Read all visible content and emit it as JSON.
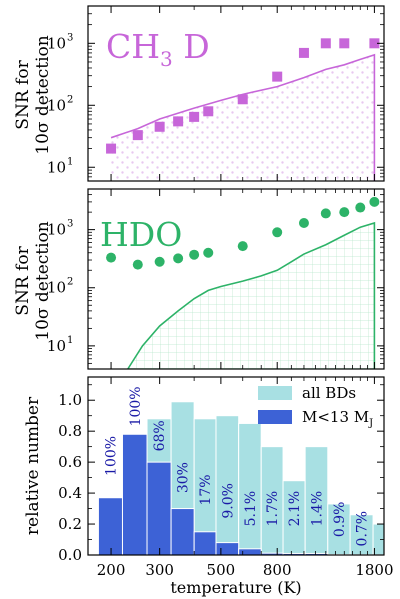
{
  "chart_data": [
    {
      "type": "line+scatter",
      "title": "CH3 D",
      "title_parts": [
        "CH",
        "3",
        " D"
      ],
      "ylabel_lines": [
        "SNR for",
        "10σ detection"
      ],
      "yscale": "log",
      "ylim": [
        6,
        4000
      ],
      "yticks": [
        {
          "v": 10,
          "label": "10"
        },
        {
          "v": 100,
          "label": "10"
        },
        {
          "v": 1000,
          "label": "10"
        }
      ],
      "ytick_exps": [
        "1",
        "2",
        "3"
      ],
      "xscale": "log",
      "xlim": [
        165,
        1950
      ],
      "accent": "#c766d9",
      "marker": "square",
      "points": [
        {
          "x": 200,
          "y": 20
        },
        {
          "x": 250,
          "y": 33
        },
        {
          "x": 300,
          "y": 45
        },
        {
          "x": 350,
          "y": 55
        },
        {
          "x": 400,
          "y": 65
        },
        {
          "x": 450,
          "y": 80
        },
        {
          "x": 600,
          "y": 125
        },
        {
          "x": 800,
          "y": 290
        },
        {
          "x": 1000,
          "y": 700
        },
        {
          "x": 1200,
          "y": 1000
        },
        {
          "x": 1400,
          "y": 1000
        },
        {
          "x": 1800,
          "y": 1000
        }
      ],
      "curve": [
        {
          "x": 200,
          "y": 30
        },
        {
          "x": 250,
          "y": 42
        },
        {
          "x": 300,
          "y": 60
        },
        {
          "x": 400,
          "y": 90
        },
        {
          "x": 500,
          "y": 120
        },
        {
          "x": 600,
          "y": 150
        },
        {
          "x": 800,
          "y": 200
        },
        {
          "x": 1000,
          "y": 280
        },
        {
          "x": 1200,
          "y": 380
        },
        {
          "x": 1400,
          "y": 450
        },
        {
          "x": 1600,
          "y": 550
        },
        {
          "x": 1800,
          "y": 650
        }
      ],
      "fill": "dots"
    },
    {
      "type": "line+scatter",
      "title": "HDO",
      "ylabel_lines": [
        "SNR for",
        "10σ detection"
      ],
      "yscale": "log",
      "ylim": [
        4,
        5000
      ],
      "yticks": [
        {
          "v": 10,
          "label": "10"
        },
        {
          "v": 100,
          "label": "10"
        },
        {
          "v": 1000,
          "label": "10"
        }
      ],
      "ytick_exps": [
        "1",
        "2",
        "3"
      ],
      "xscale": "log",
      "xlim": [
        165,
        1950
      ],
      "accent": "#2db368",
      "marker": "circle",
      "points": [
        {
          "x": 200,
          "y": 330
        },
        {
          "x": 250,
          "y": 250
        },
        {
          "x": 300,
          "y": 280
        },
        {
          "x": 350,
          "y": 320
        },
        {
          "x": 400,
          "y": 370
        },
        {
          "x": 450,
          "y": 400
        },
        {
          "x": 600,
          "y": 520
        },
        {
          "x": 800,
          "y": 900
        },
        {
          "x": 1000,
          "y": 1300
        },
        {
          "x": 1200,
          "y": 1900
        },
        {
          "x": 1400,
          "y": 2000
        },
        {
          "x": 1600,
          "y": 2400
        },
        {
          "x": 1800,
          "y": 3000
        }
      ],
      "curve": [
        {
          "x": 230,
          "y": 4
        },
        {
          "x": 260,
          "y": 10
        },
        {
          "x": 300,
          "y": 22
        },
        {
          "x": 350,
          "y": 40
        },
        {
          "x": 400,
          "y": 65
        },
        {
          "x": 450,
          "y": 90
        },
        {
          "x": 500,
          "y": 105
        },
        {
          "x": 600,
          "y": 130
        },
        {
          "x": 700,
          "y": 160
        },
        {
          "x": 800,
          "y": 200
        },
        {
          "x": 900,
          "y": 280
        },
        {
          "x": 1000,
          "y": 380
        },
        {
          "x": 1200,
          "y": 550
        },
        {
          "x": 1400,
          "y": 800
        },
        {
          "x": 1600,
          "y": 1100
        },
        {
          "x": 1800,
          "y": 1300
        }
      ],
      "fill": "grid"
    },
    {
      "type": "bar",
      "ylabel": "relative number",
      "xlabel": "temperature (K)",
      "ylim": [
        0,
        1.15
      ],
      "yticks": [
        0.0,
        0.2,
        0.4,
        0.6,
        0.8,
        1.0
      ],
      "ytick_labels": [
        "0.0",
        "0.2",
        "0.4",
        "0.6",
        "0.8",
        "1.0"
      ],
      "xscale": "log",
      "xlim": [
        165,
        1950
      ],
      "xticks": [
        {
          "v": 200,
          "label": "200"
        },
        {
          "v": 300,
          "label": "300"
        },
        {
          "v": 500,
          "label": "500"
        },
        {
          "v": 800,
          "label": "800"
        },
        {
          "v": 1800,
          "label": "1800"
        }
      ],
      "bin_edges": [
        180,
        220,
        270,
        330,
        400,
        480,
        580,
        700,
        840,
        1010,
        1220,
        1470,
        1780,
        2150
      ],
      "series": [
        {
          "name": "all BDs",
          "color": "#a8e0e3",
          "values": [
            0.37,
            0.78,
            0.88,
            0.99,
            0.88,
            0.9,
            0.85,
            0.7,
            0.48,
            0.7,
            0.33,
            0.26,
            0.2
          ]
        },
        {
          "name": "M<13 M",
          "name_sub": "J",
          "color": "#3d62d6",
          "values": [
            0.37,
            0.78,
            0.6,
            0.3,
            0.15,
            0.08,
            0.04,
            0.012,
            0.01,
            0.01,
            0.003,
            0.002,
            0.0014
          ]
        }
      ],
      "percent_labels": [
        "100%",
        "100%",
        "68%",
        "30%",
        "17%",
        "9.0%",
        "5.1%",
        "1.7%",
        "2.1%",
        "1.4%",
        "0.9%",
        "0.7%"
      ],
      "percent_label_y": [
        0.64,
        0.96,
        0.77,
        0.5,
        0.42,
        0.35,
        0.3,
        0.3,
        0.3,
        0.3,
        0.23,
        0.17
      ]
    }
  ]
}
